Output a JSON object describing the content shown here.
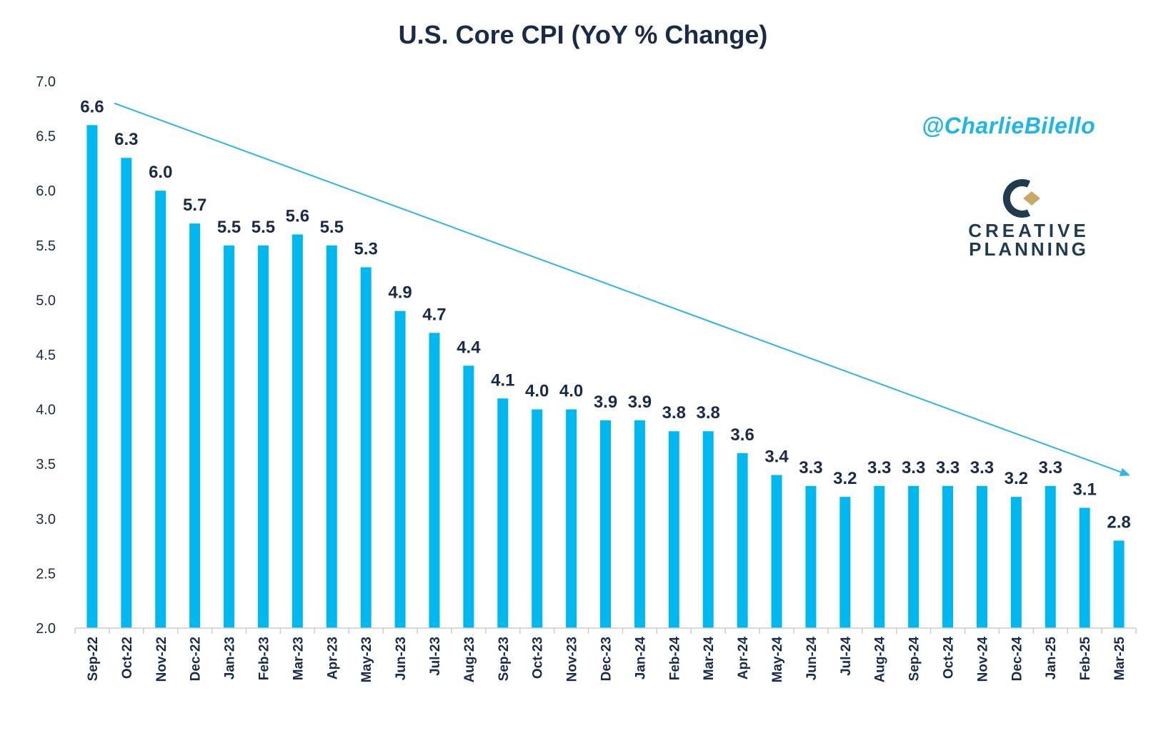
{
  "chart_data": {
    "type": "bar",
    "title": "U.S. Core CPI (YoY % Change)",
    "xlabel": "",
    "ylabel": "",
    "ylim": [
      2.0,
      7.0
    ],
    "yticks": [
      "2.0",
      "2.5",
      "3.0",
      "3.5",
      "4.0",
      "4.5",
      "5.0",
      "5.5",
      "6.0",
      "6.5",
      "7.0"
    ],
    "grid": false,
    "bar_color": "#00b8f0",
    "trend_color": "#29b6e8",
    "categories": [
      "Sep-22",
      "Oct-22",
      "Nov-22",
      "Dec-22",
      "Jan-23",
      "Feb-23",
      "Mar-23",
      "Apr-23",
      "May-23",
      "Jun-23",
      "Jul-23",
      "Aug-23",
      "Sep-23",
      "Oct-23",
      "Nov-23",
      "Dec-23",
      "Jan-24",
      "Feb-24",
      "Mar-24",
      "Apr-24",
      "May-24",
      "Jun-24",
      "Jul-24",
      "Aug-24",
      "Sep-24",
      "Oct-24",
      "Nov-24",
      "Dec-24",
      "Jan-25",
      "Feb-25",
      "Mar-25"
    ],
    "values": [
      6.6,
      6.3,
      6.0,
      5.7,
      5.5,
      5.5,
      5.6,
      5.5,
      5.3,
      4.9,
      4.7,
      4.4,
      4.1,
      4.0,
      4.0,
      3.9,
      3.9,
      3.8,
      3.8,
      3.6,
      3.4,
      3.3,
      3.2,
      3.3,
      3.3,
      3.3,
      3.3,
      3.2,
      3.3,
      3.1,
      2.8
    ],
    "data_labels": [
      "6.6",
      "6.3",
      "6.0",
      "5.7",
      "5.5",
      "5.5",
      "5.6",
      "5.5",
      "5.3",
      "4.9",
      "4.7",
      "4.4",
      "4.1",
      "4.0",
      "4.0",
      "3.9",
      "3.9",
      "3.8",
      "3.8",
      "3.6",
      "3.4",
      "3.3",
      "3.2",
      "3.3",
      "3.3",
      "3.3",
      "3.3",
      "3.2",
      "3.3",
      "3.1",
      "2.8"
    ],
    "trend_line": {
      "start_value": 6.8,
      "end_value": 3.4
    }
  },
  "watermark": {
    "handle": "@CharlieBilello",
    "logo_line1": "CREATIVE",
    "logo_line2": "PLANNING",
    "logo_colors": {
      "dark": "#1f3b4d",
      "gold": "#c9a86a",
      "text": "#1f3b4d"
    }
  }
}
